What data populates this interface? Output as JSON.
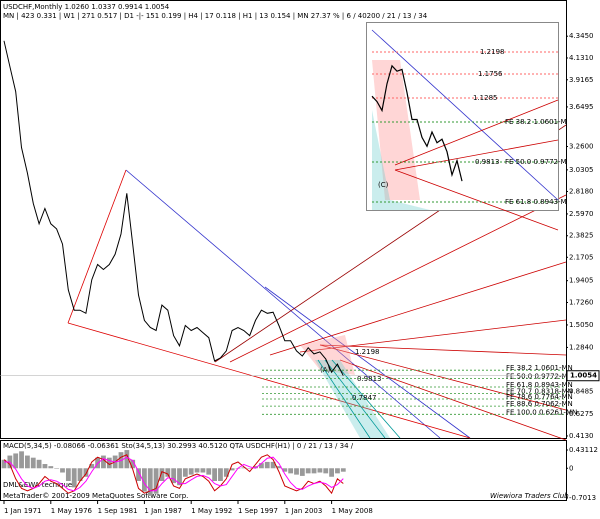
{
  "header": {
    "title": "USDCHF,Monthly 1.0260 1.0337 0.9914 1.0054",
    "info": "MN | 423 0.331 | W1 | 271 0.517 | D1 -|- 151 0.199 | H4 | 17 0.118 | H1 | 13 0.154 | MN 27.37 % | 6 / 40200 / 21 / 13 / 34"
  },
  "chart_data": [
    {
      "type": "line",
      "categories": [
        "1 Jan 1971",
        null,
        null,
        null,
        null,
        null,
        null,
        null,
        "1 May 1976",
        null,
        null,
        null,
        null,
        null,
        null,
        null,
        "1 Sep 1981",
        null,
        null,
        null,
        null,
        null,
        null,
        null,
        "1 Jan 1987",
        null,
        null,
        null,
        null,
        null,
        null,
        null,
        "1 May 1992",
        null,
        null,
        null,
        null,
        null,
        null,
        null,
        "1 Sep 1997",
        null,
        null,
        null,
        null,
        null,
        null,
        null,
        "1 Jan 2003",
        null,
        null,
        null,
        null,
        null,
        null,
        null,
        "1 May 2008",
        null,
        null
      ],
      "values": [
        4.3,
        4.05,
        3.8,
        3.25,
        3.0,
        2.7,
        2.5,
        2.65,
        2.5,
        2.45,
        2.3,
        1.85,
        1.65,
        1.65,
        1.62,
        1.95,
        2.1,
        2.05,
        2.1,
        2.2,
        2.4,
        2.8,
        2.3,
        1.8,
        1.55,
        1.48,
        1.45,
        1.7,
        1.65,
        1.4,
        1.3,
        1.5,
        1.45,
        1.48,
        1.43,
        1.38,
        1.15,
        1.18,
        1.25,
        1.45,
        1.48,
        1.45,
        1.4,
        1.55,
        1.65,
        1.62,
        1.63,
        1.5,
        1.35,
        1.35,
        1.25,
        1.2,
        1.28,
        1.22,
        1.24,
        1.17,
        1.04,
        1.12,
        1.0054
      ],
      "color": "#000000",
      "ylim": [
        0.393,
        4.652
      ],
      "yticks": [
        {
          "value": 4.345,
          "label": "4.3450"
        },
        {
          "value": 4.131,
          "label": "4.1310"
        },
        3.9165,
        3.6495,
        {
          "value": 3.26,
          "label": "3.2600"
        },
        3.0305,
        {
          "value": 2.818,
          "label": "2.8180"
        },
        {
          "value": 2.597,
          "label": "2.5970"
        },
        2.3825,
        2.1705,
        1.9405,
        {
          "value": 1.726,
          "label": "1.7260"
        },
        {
          "value": 1.505,
          "label": "1.5050"
        },
        {
          "value": 1.284,
          "label": "1.2840"
        },
        0.8485,
        0.6275,
        {
          "value": 0.413,
          "label": "0.4130"
        }
      ],
      "fib_levels": [
        {
          "value": 1.0601,
          "label": "FE 38.2 1.0601-MN"
        },
        {
          "value": 0.9772,
          "label": "FE 50.0 0.9772-MN"
        },
        {
          "value": 0.8943,
          "label": "FE 61.8 0.8943-MN"
        },
        {
          "value": 0.8318,
          "label": "FE 70.7 0.8318-MN"
        },
        {
          "value": 0.7764,
          "label": "FE 78.6 0.7764-MN"
        },
        {
          "value": 0.7062,
          "label": "FE 88.6 0.7062-MN"
        },
        {
          "value": 0.6261,
          "label": "FE 100.0 0.6261-MN"
        }
      ],
      "annotations": [
        "(A)",
        "0.9813",
        "0.7847",
        "1.2198"
      ],
      "inset_labels": [
        "1.2198",
        "1.1756",
        "1.1285",
        "0.9813",
        "FE 38.2 1.0601-M",
        "FE 50.0 0.9772-M",
        "FE 61.8 0.8943-M",
        "(C)"
      ]
    },
    {
      "type": "indicator",
      "title": "MACD(5,34,5) -0.08066 -0.06361 Sto(34,5,13) 30.2993 40.5120 QTA USDCHF(H1) | 0 / 21 / 13 / 34 /",
      "subtitle": "DML&EWA tecnique",
      "ylim": [
        -0.7013,
        0.43112
      ],
      "yticks": [
        0.43112,
        0,
        -0.7013
      ],
      "histogram": {
        "color": "#999999",
        "values": [
          0.2,
          0.3,
          0.35,
          0.4,
          0.3,
          0.25,
          0.2,
          0.1,
          0.05,
          0.0,
          -0.1,
          -0.3,
          -0.45,
          -0.3,
          -0.2,
          0.1,
          0.25,
          0.3,
          0.25,
          0.3,
          0.38,
          0.43,
          0.2,
          -0.3,
          -0.55,
          -0.65,
          -0.6,
          -0.3,
          -0.2,
          -0.35,
          -0.4,
          -0.2,
          -0.15,
          -0.1,
          -0.1,
          -0.15,
          -0.3,
          -0.3,
          -0.2,
          -0.05,
          0.0,
          0.02,
          0.0,
          0.05,
          0.12,
          0.15,
          0.15,
          0.05,
          -0.08,
          -0.12,
          -0.15,
          -0.18,
          -0.12,
          -0.12,
          -0.1,
          -0.12,
          -0.2,
          -0.12,
          -0.08066
        ]
      },
      "lines": [
        {
          "color": "#cc0000",
          "values": [
            80,
            70,
            40,
            20,
            15,
            20,
            30,
            45,
            35,
            30,
            20,
            10,
            15,
            35,
            50,
            75,
            85,
            80,
            70,
            75,
            85,
            90,
            60,
            20,
            10,
            15,
            20,
            55,
            50,
            25,
            20,
            40,
            45,
            50,
            45,
            35,
            15,
            25,
            40,
            70,
            75,
            65,
            55,
            70,
            85,
            90,
            80,
            55,
            25,
            20,
            15,
            20,
            35,
            30,
            35,
            25,
            10,
            40,
            30.2993
          ]
        },
        {
          "color": "#ff00ff",
          "values": [
            75,
            75,
            60,
            40,
            25,
            20,
            25,
            35,
            38,
            35,
            28,
            18,
            15,
            22,
            35,
            55,
            72,
            82,
            78,
            75,
            78,
            85,
            78,
            55,
            30,
            15,
            15,
            30,
            42,
            40,
            30,
            30,
            38,
            45,
            47,
            42,
            30,
            25,
            28,
            45,
            62,
            70,
            65,
            62,
            72,
            83,
            85,
            72,
            50,
            32,
            20,
            18,
            25,
            30,
            33,
            30,
            22,
            28,
            40.512
          ]
        }
      ]
    }
  ],
  "footer": "MetaTrader© 2001-2009 MetaQuotes Software Corp.",
  "signature": "Wiewiora Traders Club"
}
